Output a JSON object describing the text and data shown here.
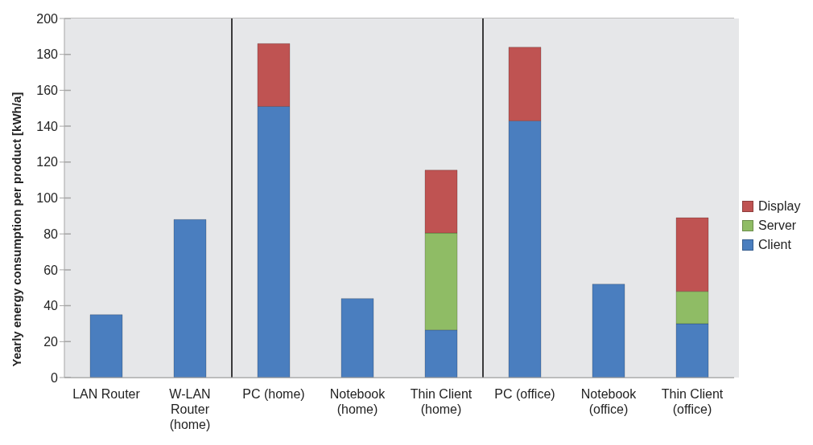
{
  "chart_data": {
    "type": "bar",
    "stacked": true,
    "ylabel": "Yearly energy consumption per product [kWh/a]",
    "categories": [
      "LAN Router",
      "W-LAN Router (home)",
      "PC (home)",
      "Notebook (home)",
      "Thin Client (home)",
      "PC (office)",
      "Notebook (office)",
      "Thin Client (office)"
    ],
    "series": [
      {
        "name": "Client",
        "color": "#4a7ebf",
        "values": [
          35,
          88,
          151,
          44,
          26.5,
          143,
          52,
          30
        ]
      },
      {
        "name": "Server",
        "color": "#8fbc65",
        "values": [
          null,
          null,
          null,
          null,
          54,
          null,
          null,
          18
        ]
      },
      {
        "name": "Display",
        "color": "#bf5352",
        "values": [
          null,
          null,
          35,
          null,
          35,
          41,
          null,
          41
        ]
      }
    ],
    "ylim": [
      0,
      200
    ],
    "yticks": [
      0,
      20,
      40,
      60,
      80,
      100,
      120,
      140,
      160,
      180,
      200
    ],
    "grid": "y",
    "legend": "right"
  }
}
